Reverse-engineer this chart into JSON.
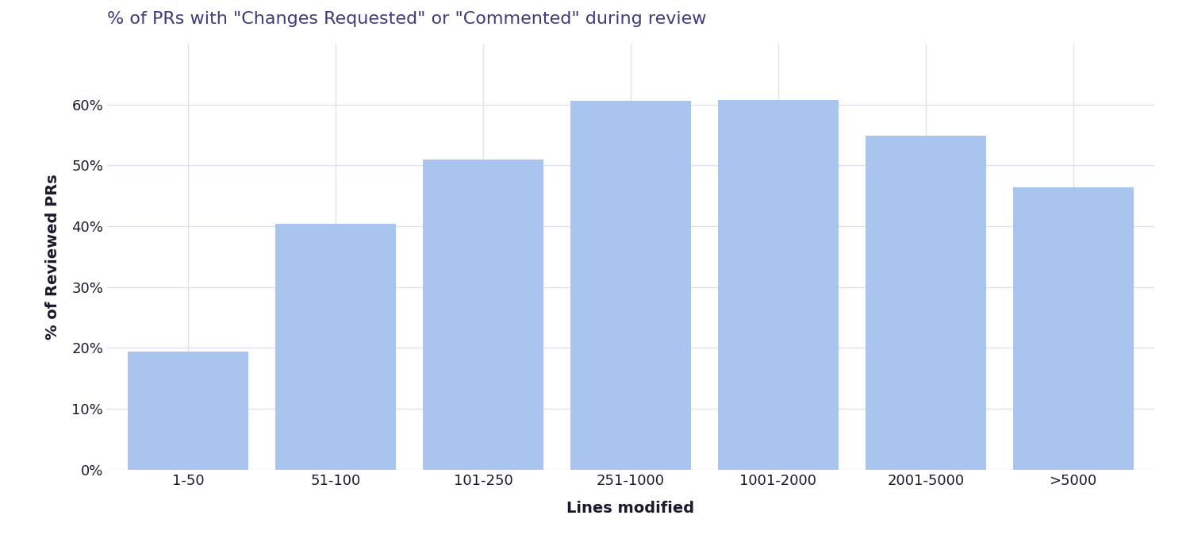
{
  "title": "% of PRs with \"Changes Requested\" or \"Commented\" during review",
  "categories": [
    "1-50",
    "51-100",
    "101-250",
    "251-1000",
    "1001-2000",
    "2001-5000",
    ">5000"
  ],
  "values": [
    0.194,
    0.404,
    0.51,
    0.606,
    0.608,
    0.549,
    0.464
  ],
  "bar_color": "#aac4f0",
  "xlabel": "Lines modified",
  "ylabel": "% of Reviewed PRs",
  "ylim": [
    0,
    0.7
  ],
  "yticks": [
    0.0,
    0.1,
    0.2,
    0.3,
    0.4,
    0.5,
    0.6
  ],
  "background_color": "#ffffff",
  "plot_background": "#ffffff",
  "title_color": "#3d3d7a",
  "axis_label_color": "#1a1a2e",
  "tick_color": "#1a1a2e",
  "grid_color": "#e0e0f0",
  "title_fontsize": 16,
  "axis_label_fontsize": 14,
  "tick_fontsize": 13,
  "bar_width": 0.82
}
